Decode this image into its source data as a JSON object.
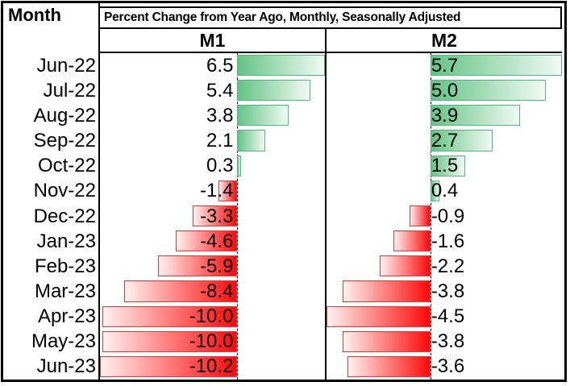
{
  "table": {
    "corner_label": "Month",
    "title": "Percent Change from Year Ago, Monthly, Seasonally Adjusted"
  },
  "colors": {
    "positive_fill": "#63C384",
    "positive_border": "#54B87C",
    "negative_fill": "#FF0808",
    "negative_border": "#DA3B3B",
    "grid": "#000000",
    "text": "#000000",
    "background": "#FFFFFF"
  },
  "chart_data": {
    "type": "bar",
    "orientation": "horizontal",
    "title": "Percent Change from Year Ago, Monthly, Seasonally Adjusted",
    "categories": [
      "Jun-22",
      "Jul-22",
      "Aug-22",
      "Sep-22",
      "Oct-22",
      "Nov-22",
      "Dec-22",
      "Jan-23",
      "Feb-23",
      "Mar-23",
      "Apr-23",
      "May-23",
      "Jun-23"
    ],
    "series": [
      {
        "name": "M1",
        "values": [
          6.5,
          5.4,
          3.8,
          2.1,
          0.3,
          -1.4,
          -3.3,
          -4.6,
          -5.9,
          -8.4,
          -10.0,
          -10.0,
          -10.2
        ],
        "axis_min": -10.2,
        "axis_max": 6.5,
        "value_side": "right_of_axis_none"
      },
      {
        "name": "M2",
        "values": [
          5.7,
          5.0,
          3.9,
          2.7,
          1.5,
          0.4,
          -0.9,
          -1.6,
          -2.2,
          -3.8,
          -4.5,
          -3.8,
          -3.6
        ],
        "axis_min": -4.5,
        "axis_max": 5.7,
        "value_side": "left_of_axis_none"
      }
    ],
    "value_decimals": 1,
    "legend": "none",
    "grid": "off",
    "xlabel": "",
    "ylabel": ""
  }
}
